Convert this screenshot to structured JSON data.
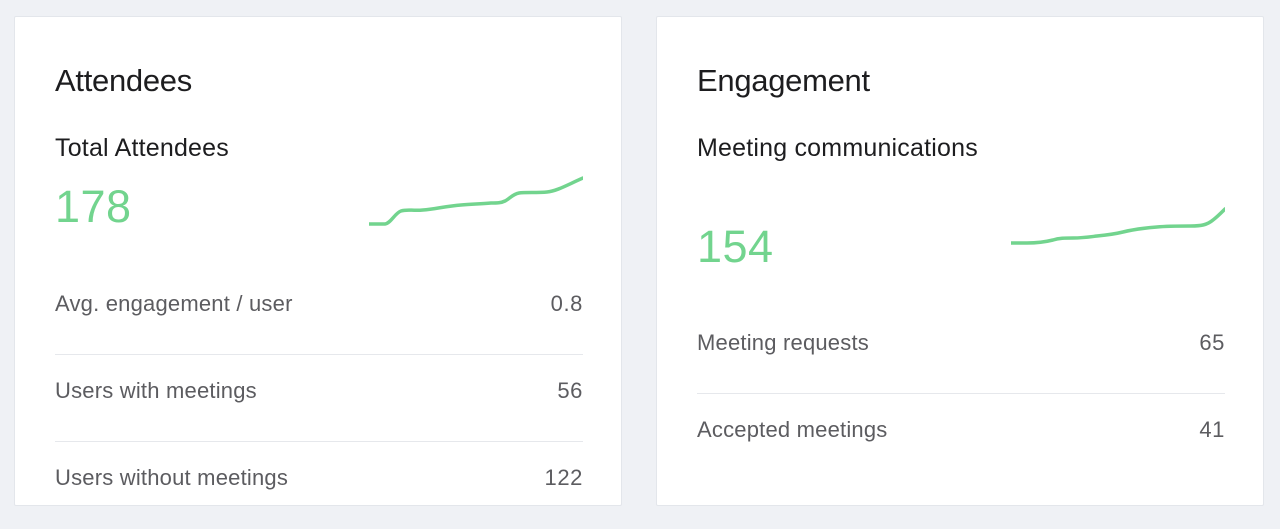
{
  "colors": {
    "accent": "#72d48e",
    "background": "#eff1f5",
    "card": "#ffffff"
  },
  "attendees": {
    "title": "Attendees",
    "metric_title": "Total Attendees",
    "metric_value": "178",
    "stats": [
      {
        "label": "Avg. engagement / user",
        "value": "0.8"
      },
      {
        "label": "Users with meetings",
        "value": "56"
      },
      {
        "label": "Users without meetings",
        "value": "122"
      }
    ]
  },
  "engagement": {
    "title": "Engagement",
    "metric_title": "Meeting communications",
    "metric_value": "154",
    "stats": [
      {
        "label": "Meeting requests",
        "value": "65"
      },
      {
        "label": "Accepted meetings",
        "value": "41"
      }
    ]
  }
}
